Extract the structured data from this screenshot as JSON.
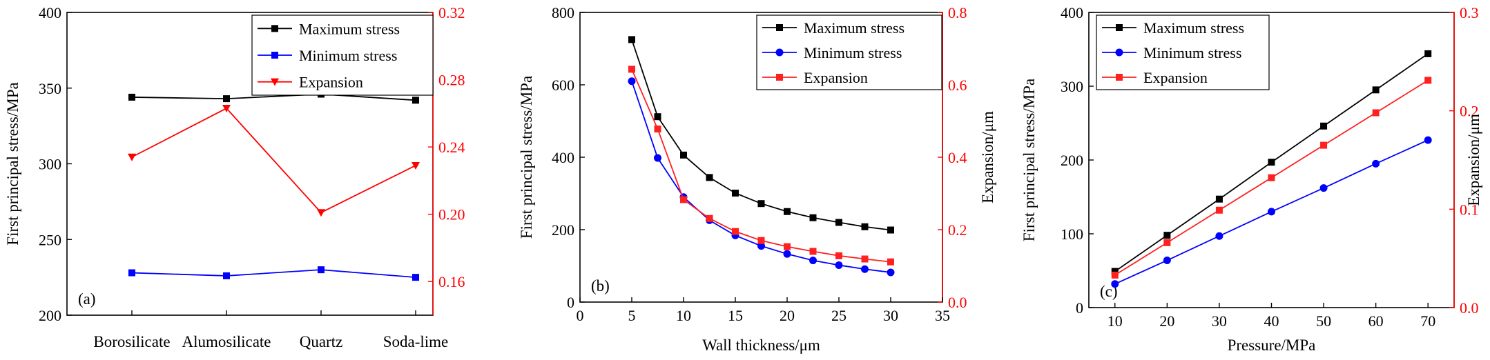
{
  "chart_data": [
    {
      "type": "line",
      "panel_label": "(a)",
      "categories": [
        "Borosilicate",
        "Alumosilicate",
        "Quartz",
        "Soda-lime"
      ],
      "xlabel": "",
      "ylabel": "First principal stress/MPa",
      "ylim": [
        200,
        400
      ],
      "yticks": [
        200,
        250,
        300,
        350,
        400
      ],
      "y2label": "",
      "y2lim": [
        0.14,
        0.32
      ],
      "y2ticks": [
        "0.16",
        "0.20",
        "0.24",
        "0.28",
        "0.32"
      ],
      "legend_position": "top-right",
      "series": [
        {
          "name": "Maximum stress",
          "axis": "left",
          "color": "#000000",
          "marker": "square",
          "values": [
            344,
            343,
            346,
            342
          ]
        },
        {
          "name": "Minimum stress",
          "axis": "left",
          "color": "#0000ff",
          "marker": "square",
          "values": [
            228,
            226,
            230,
            225
          ]
        },
        {
          "name": "Expansion",
          "axis": "right",
          "color": "#ff0000",
          "marker": "triangle-down",
          "values": [
            0.234,
            0.263,
            0.201,
            0.229
          ]
        }
      ]
    },
    {
      "type": "line",
      "panel_label": "(b)",
      "xlabel": "Wall thickness/μm",
      "xlim": [
        0,
        35
      ],
      "xticks": [
        0,
        5,
        10,
        15,
        20,
        25,
        30,
        35
      ],
      "ylabel": "First principal stress/MPa",
      "ylim": [
        0,
        800
      ],
      "yticks": [
        0,
        200,
        400,
        600,
        800
      ],
      "y2label": "Expansion/μm",
      "y2lim": [
        0.0,
        0.8
      ],
      "y2ticks": [
        "0.0",
        "0.2",
        "0.4",
        "0.6",
        "0.8"
      ],
      "legend_position": "top-right",
      "x": [
        5,
        7.5,
        10,
        12.5,
        15,
        17.5,
        20,
        22.5,
        25,
        27.5,
        30
      ],
      "series": [
        {
          "name": "Maximum  stress",
          "axis": "left",
          "color": "#000000",
          "marker": "square",
          "values": [
            725,
            512,
            406,
            344,
            301,
            272,
            250,
            233,
            220,
            208,
            199
          ]
        },
        {
          "name": "Minimum   stress",
          "axis": "left",
          "color": "#0000ff",
          "marker": "circle",
          "values": [
            610,
            398,
            290,
            226,
            184,
            155,
            133,
            115,
            102,
            91,
            82
          ]
        },
        {
          "name": "Expansion",
          "axis": "right",
          "color": "#ff2020",
          "marker": "square",
          "values": [
            0.643,
            0.478,
            0.283,
            0.231,
            0.195,
            0.17,
            0.153,
            0.14,
            0.128,
            0.119,
            0.111
          ]
        }
      ]
    },
    {
      "type": "line",
      "panel_label": "(c)",
      "xlabel": "Pressure/MPa",
      "xlim": [
        5,
        75
      ],
      "xticks": [
        10,
        20,
        30,
        40,
        50,
        60,
        70
      ],
      "ylabel": "First principal stress/MPa",
      "ylim": [
        0,
        400
      ],
      "yticks": [
        0,
        100,
        200,
        300,
        400
      ],
      "y2label": "Expansion/μm",
      "y2lim": [
        0.0,
        0.3
      ],
      "y2ticks": [
        "0.0",
        "0.1",
        "0.2",
        "0.3"
      ],
      "legend_position": "top-left",
      "x": [
        10,
        20,
        30,
        40,
        50,
        60,
        70
      ],
      "series": [
        {
          "name": "Maximum stress",
          "axis": "left",
          "color": "#000000",
          "marker": "square",
          "values": [
            49,
            98,
            147,
            197,
            246,
            295,
            344
          ]
        },
        {
          "name": "Minimum  stress",
          "axis": "left",
          "color": "#0000ff",
          "marker": "circle",
          "values": [
            32,
            64,
            97,
            130,
            162,
            195,
            227
          ]
        },
        {
          "name": "Expansion",
          "axis": "right",
          "color": "#ff2020",
          "marker": "square",
          "values": [
            0.033,
            0.066,
            0.099,
            0.132,
            0.165,
            0.198,
            0.231
          ]
        }
      ]
    }
  ]
}
